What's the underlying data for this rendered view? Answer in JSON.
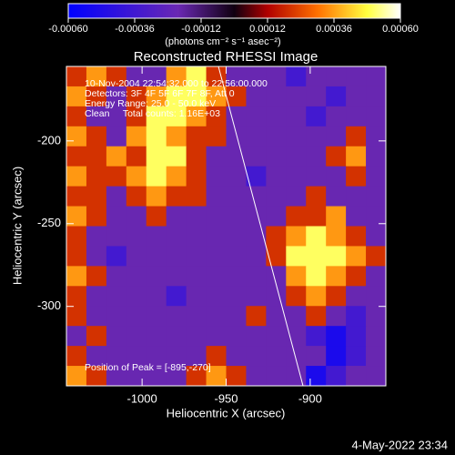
{
  "chart_data": {
    "type": "heatmap",
    "title": "Reconstructed RHESSI Image",
    "x_label": "Heliocentric X (arcsec)",
    "y_label": "Heliocentric Y (arcsec)",
    "colorbar_label": "(photons cm⁻² s⁻¹ asec⁻²)",
    "annotations": [
      "10-Nov-2004 22:54:32.000 to 22:56:00.000",
      "Detectors: 3F 4F 5F 6F 7F 8F, Att 0",
      "Energy Range: 25.0 - 50.0 keV",
      "Clean     Total counts: 1.16E+03",
      "Position of Peak = [-895,-270]"
    ],
    "footer": "4-May-2022 23:34",
    "xlim": [
      -1045,
      -855
    ],
    "ylim": [
      -348,
      -155
    ],
    "xticks": [
      -1000,
      -950,
      -900
    ],
    "yticks": [
      -200,
      -250,
      -300
    ],
    "clim": [
      -0.0006,
      0.0006
    ],
    "cticks": [
      {
        "value": -0.0006,
        "label": "-0.00060"
      },
      {
        "value": -0.00036,
        "label": "-0.00036"
      },
      {
        "value": -0.00012,
        "label": "-0.00012"
      },
      {
        "value": 0.00012,
        "label": "0.00012"
      },
      {
        "value": 0.00036,
        "label": "0.00036"
      },
      {
        "value": 0.0006,
        "label": "0.00060"
      }
    ],
    "colorscale": [
      [
        0,
        "#0000ff"
      ],
      [
        0.33,
        "#6a28b4"
      ],
      [
        0.5,
        "#100010"
      ],
      [
        0.6,
        "#b00000"
      ],
      [
        0.75,
        "#ff7000"
      ],
      [
        0.9,
        "#ffff40"
      ],
      [
        1,
        "#ffffff"
      ]
    ],
    "z": [
      [
        0.0002,
        0.00035,
        0.0002,
        -0.0002,
        -0.0002,
        0.00035,
        0.0005,
        0.0002,
        -0.0002,
        -0.0002,
        -0.0002,
        -0.00035,
        -0.0002,
        -0.0002,
        -0.0002,
        -0.0002
      ],
      [
        0.00035,
        0.0002,
        -0.0002,
        0.0002,
        0.00035,
        0.0005,
        0.0005,
        0.00035,
        0.0002,
        -0.0002,
        -0.0002,
        -0.0002,
        -0.0002,
        -0.00035,
        -0.0002,
        -0.0002
      ],
      [
        0.0002,
        -0.0002,
        -0.0002,
        0.0002,
        0.0005,
        0.0005,
        0.00035,
        0.0002,
        -0.0002,
        -0.0002,
        -0.0002,
        -0.0002,
        -0.00035,
        -0.0002,
        -0.0002,
        -0.0002
      ],
      [
        0.00035,
        0.0002,
        -0.0002,
        0.00035,
        0.0005,
        0.00035,
        0.0002,
        0.0002,
        -0.0002,
        -0.0002,
        -0.0002,
        -0.0002,
        -0.0002,
        -0.0002,
        0.0002,
        -0.0002
      ],
      [
        0.0002,
        0.0002,
        0.00035,
        0.0002,
        0.0005,
        0.0005,
        0.0002,
        -0.0002,
        -0.0002,
        -0.0002,
        -0.0002,
        -0.0002,
        -0.0002,
        0.0002,
        0.00035,
        -0.0002
      ],
      [
        0.00035,
        0.0002,
        0.0002,
        0.00035,
        0.0005,
        0.00035,
        0.0002,
        -0.0002,
        -0.0002,
        -0.00035,
        -0.0002,
        -0.0002,
        -0.0002,
        -0.0002,
        0.0002,
        -0.0002
      ],
      [
        0.0002,
        0.0002,
        -0.0002,
        0.0002,
        0.00035,
        0.0002,
        0.0002,
        -0.0002,
        -0.0002,
        -0.0002,
        -0.0002,
        -0.0002,
        0.0002,
        -0.0002,
        -0.0002,
        -0.0002
      ],
      [
        0.00035,
        0.0002,
        -0.0002,
        -0.0002,
        0.0002,
        -0.0002,
        -0.0002,
        -0.0002,
        -0.0002,
        -0.0002,
        -0.0002,
        0.0002,
        0.0002,
        0.00035,
        -0.0002,
        -0.0002
      ],
      [
        0.0002,
        -0.0002,
        -0.0002,
        -0.0002,
        -0.0002,
        -0.0002,
        -0.0002,
        -0.0002,
        -0.0002,
        -0.0002,
        0.0002,
        0.00035,
        0.0005,
        0.00035,
        0.0002,
        -0.0002
      ],
      [
        0.0002,
        -0.0002,
        -0.00035,
        -0.0002,
        -0.0002,
        -0.0002,
        -0.0002,
        -0.0002,
        -0.0002,
        -0.0002,
        0.0002,
        0.0005,
        0.0005,
        0.0005,
        0.00035,
        0.0002
      ],
      [
        0.00035,
        0.0002,
        -0.0002,
        -0.0002,
        -0.0002,
        -0.0002,
        -0.0002,
        -0.0002,
        -0.0002,
        -0.0002,
        -0.0002,
        0.00035,
        0.0005,
        0.00035,
        0.0002,
        -0.0002
      ],
      [
        0.0002,
        -0.0002,
        -0.0002,
        -0.0002,
        -0.0002,
        -0.00035,
        -0.0002,
        -0.0002,
        -0.0002,
        -0.0002,
        -0.0002,
        0.0002,
        0.00035,
        0.0002,
        -0.0002,
        -0.0002
      ],
      [
        0.0002,
        -0.0002,
        -0.0002,
        -0.0002,
        -0.0002,
        -0.0002,
        -0.0002,
        -0.0002,
        -0.0002,
        0.0002,
        -0.0002,
        -0.0002,
        0.0002,
        -0.0002,
        -0.00035,
        -0.0002
      ],
      [
        -0.0002,
        0.0002,
        -0.0002,
        -0.0002,
        -0.0002,
        -0.0002,
        -0.0002,
        -0.0002,
        -0.0002,
        -0.0002,
        -0.0002,
        -0.0002,
        -0.00035,
        -0.0005,
        -0.00035,
        -0.0002
      ],
      [
        0.0002,
        -0.0002,
        -0.0002,
        -0.0002,
        -0.0002,
        -0.0002,
        -0.0002,
        0.0002,
        -0.0002,
        -0.0002,
        -0.0002,
        -0.0002,
        -0.0002,
        -0.0005,
        -0.00035,
        -0.0002
      ],
      [
        0.00035,
        0.0002,
        -0.0002,
        -0.0002,
        -0.0002,
        -0.0002,
        0.0002,
        0.00035,
        0.0002,
        -0.0002,
        -0.0002,
        -0.0002,
        -0.0005,
        -0.00035,
        -0.0002,
        -0.0002
      ]
    ]
  }
}
